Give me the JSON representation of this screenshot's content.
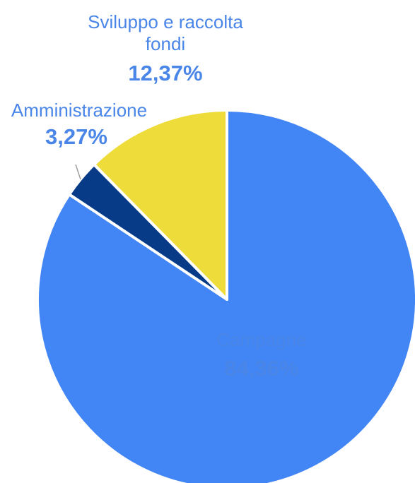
{
  "chart_data": {
    "type": "pie",
    "slices": [
      {
        "label": "Campagne",
        "value": 84.36,
        "display": "84,36%",
        "color": "#4285f4"
      },
      {
        "label": "Amministrazione",
        "value": 3.27,
        "display": "3,27%",
        "color": "#073b87"
      },
      {
        "label": "Sviluppo e raccolta fondi",
        "label_lines": [
          "Sviluppo e raccolta",
          "fondi"
        ],
        "value": 12.37,
        "display": "12,37%",
        "color": "#eedc3a"
      }
    ],
    "start_angle": "12 o'clock",
    "direction": "clockwise",
    "label_color": "#4a86e8",
    "inside_label_color": "#ffffff",
    "slice_border_color": "#ffffff",
    "leader_line_color": "#9e9e9e"
  }
}
